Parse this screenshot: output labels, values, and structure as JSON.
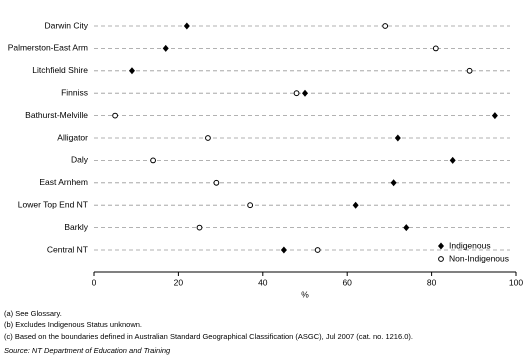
{
  "chart_data": {
    "type": "dot",
    "categories": [
      "Darwin City",
      "Palmerston-East Arm",
      "Litchfield Shire",
      "Finniss",
      "Bathurst-Melville",
      "Alligator",
      "Daly",
      "East Arnhem",
      "Lower Top End NT",
      "Barkly",
      "Central NT"
    ],
    "series": [
      {
        "name": "Indigenous",
        "color": "#000000",
        "values": [
          22,
          17,
          9,
          50,
          95,
          72,
          85,
          71,
          62,
          74,
          45
        ]
      },
      {
        "name": "Non-Indigenous",
        "color": "#000000",
        "values": [
          69,
          81,
          89,
          48,
          5,
          27,
          14,
          29,
          37,
          25,
          53
        ]
      }
    ],
    "xlabel": "%",
    "xlim": [
      0,
      100
    ],
    "xticks": [
      0,
      20,
      40,
      60,
      80,
      100
    ],
    "legend": "bottom-right",
    "footnotes": [
      "(a) See Glossary.",
      "(b) Excludes Indigenous Status unknown.",
      "(c) Based on the boundaries defined in Australian Standard Geographical Classification (ASGC), Jul 2007 (cat. no. 1216.0)."
    ],
    "source": "Source: NT Department of Education and Training"
  }
}
